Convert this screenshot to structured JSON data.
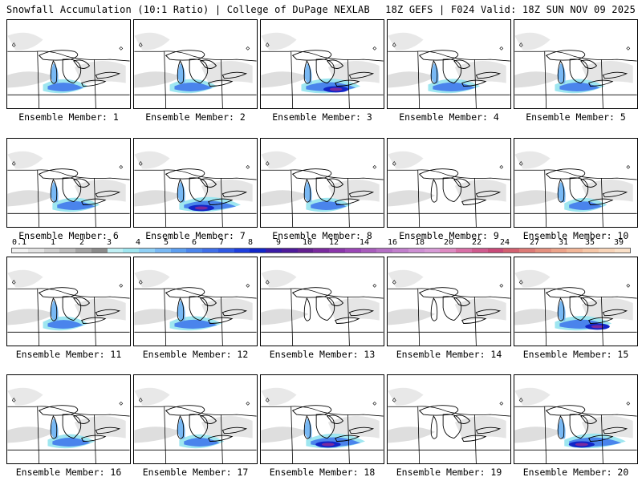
{
  "header": {
    "left_title": "Snowfall Accumulation (10:1 Ratio) | College of DuPage NEXLAB",
    "right_title": "18Z GEFS | F024 Valid: 18Z SUN NOV 09 2025"
  },
  "panels": [
    {
      "caption": "Ensemble Member: 1",
      "member": 1,
      "intensity": 0.45
    },
    {
      "caption": "Ensemble Member: 2",
      "member": 2,
      "intensity": 0.5
    },
    {
      "caption": "Ensemble Member: 3",
      "member": 3,
      "intensity": 0.75
    },
    {
      "caption": "Ensemble Member: 4",
      "member": 4,
      "intensity": 0.6
    },
    {
      "caption": "Ensemble Member: 5",
      "member": 5,
      "intensity": 0.55
    },
    {
      "caption": "Ensemble Member: 6",
      "member": 6,
      "intensity": 0.5
    },
    {
      "caption": "Ensemble Member: 7",
      "member": 7,
      "intensity": 0.8
    },
    {
      "caption": "Ensemble Member: 8",
      "member": 8,
      "intensity": 0.45
    },
    {
      "caption": "Ensemble Member: 9",
      "member": 9,
      "intensity": 0.15
    },
    {
      "caption": "Ensemble Member: 10",
      "member": 10,
      "intensity": 0.4
    },
    {
      "caption": "Ensemble Member: 11",
      "member": 11,
      "intensity": 0.45
    },
    {
      "caption": "Ensemble Member: 12",
      "member": 12,
      "intensity": 0.6
    },
    {
      "caption": "Ensemble Member: 13",
      "member": 13,
      "intensity": 0.1
    },
    {
      "caption": "Ensemble Member: 14",
      "member": 14,
      "intensity": 0.05
    },
    {
      "caption": "Ensemble Member: 15",
      "member": 15,
      "intensity": 0.7
    },
    {
      "caption": "Ensemble Member: 16",
      "member": 16,
      "intensity": 0.5
    },
    {
      "caption": "Ensemble Member: 17",
      "member": 17,
      "intensity": 0.45
    },
    {
      "caption": "Ensemble Member: 18",
      "member": 18,
      "intensity": 0.75
    },
    {
      "caption": "Ensemble Member: 19",
      "member": 19,
      "intensity": 0.15
    },
    {
      "caption": "Ensemble Member: 20",
      "member": 20,
      "intensity": 0.8
    }
  ],
  "legend": {
    "labels": [
      "0.1",
      "1",
      "2",
      "3",
      "4",
      "5",
      "6",
      "7",
      "8",
      "9",
      "10",
      "12",
      "14",
      "16",
      "18",
      "20",
      "22",
      "24",
      "27",
      "31",
      "35",
      "39"
    ],
    "colors": [
      "#f2f2f2",
      "#e3e3e3",
      "#cfcfcf",
      "#bdbdbd",
      "#a3a3a3",
      "#8a8a8a",
      "#bfeff4",
      "#9ee6f0",
      "#8fd0f6",
      "#78b8f4",
      "#5c9ef0",
      "#4a84ec",
      "#3f6ee8",
      "#2f58e4",
      "#1e3edd",
      "#1226c8",
      "#3a1ba6",
      "#4e1a9a",
      "#63208f",
      "#7a2a9e",
      "#8a35aa",
      "#9a46b6",
      "#a85cbc",
      "#b46fc4",
      "#c17fcc",
      "#cd8fd3",
      "#d79ad6",
      "#de8bc2",
      "#d86fa6",
      "#cf5a8e",
      "#c84a78",
      "#d26070",
      "#dc7a76",
      "#e4907f",
      "#eca38a",
      "#f2b698",
      "#f6c7a8",
      "#f8d4b8",
      "#fae0c8"
    ]
  }
}
